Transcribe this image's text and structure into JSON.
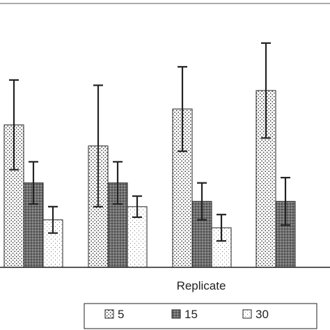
{
  "chart_data": {
    "type": "bar",
    "xlabel": "Replicate",
    "categories": [
      "",
      "",
      "",
      ""
    ],
    "ylim": [
      0,
      100
    ],
    "grid": false,
    "legend_placement": "bottom",
    "series": [
      {
        "name": "5",
        "pattern": "dense-dots",
        "color": "#bbbbbb",
        "values": [
          54,
          46,
          60,
          67
        ],
        "errors": [
          17,
          23,
          16,
          18
        ]
      },
      {
        "name": "15",
        "pattern": "dark-dots",
        "color": "#777777",
        "values": [
          32,
          32,
          25,
          25
        ],
        "errors": [
          8,
          8,
          7,
          9
        ]
      },
      {
        "name": "30",
        "pattern": "light-dots",
        "color": "#eeeeee",
        "values": [
          18,
          23,
          15,
          null
        ],
        "errors": [
          5,
          4,
          5,
          null
        ]
      }
    ]
  }
}
